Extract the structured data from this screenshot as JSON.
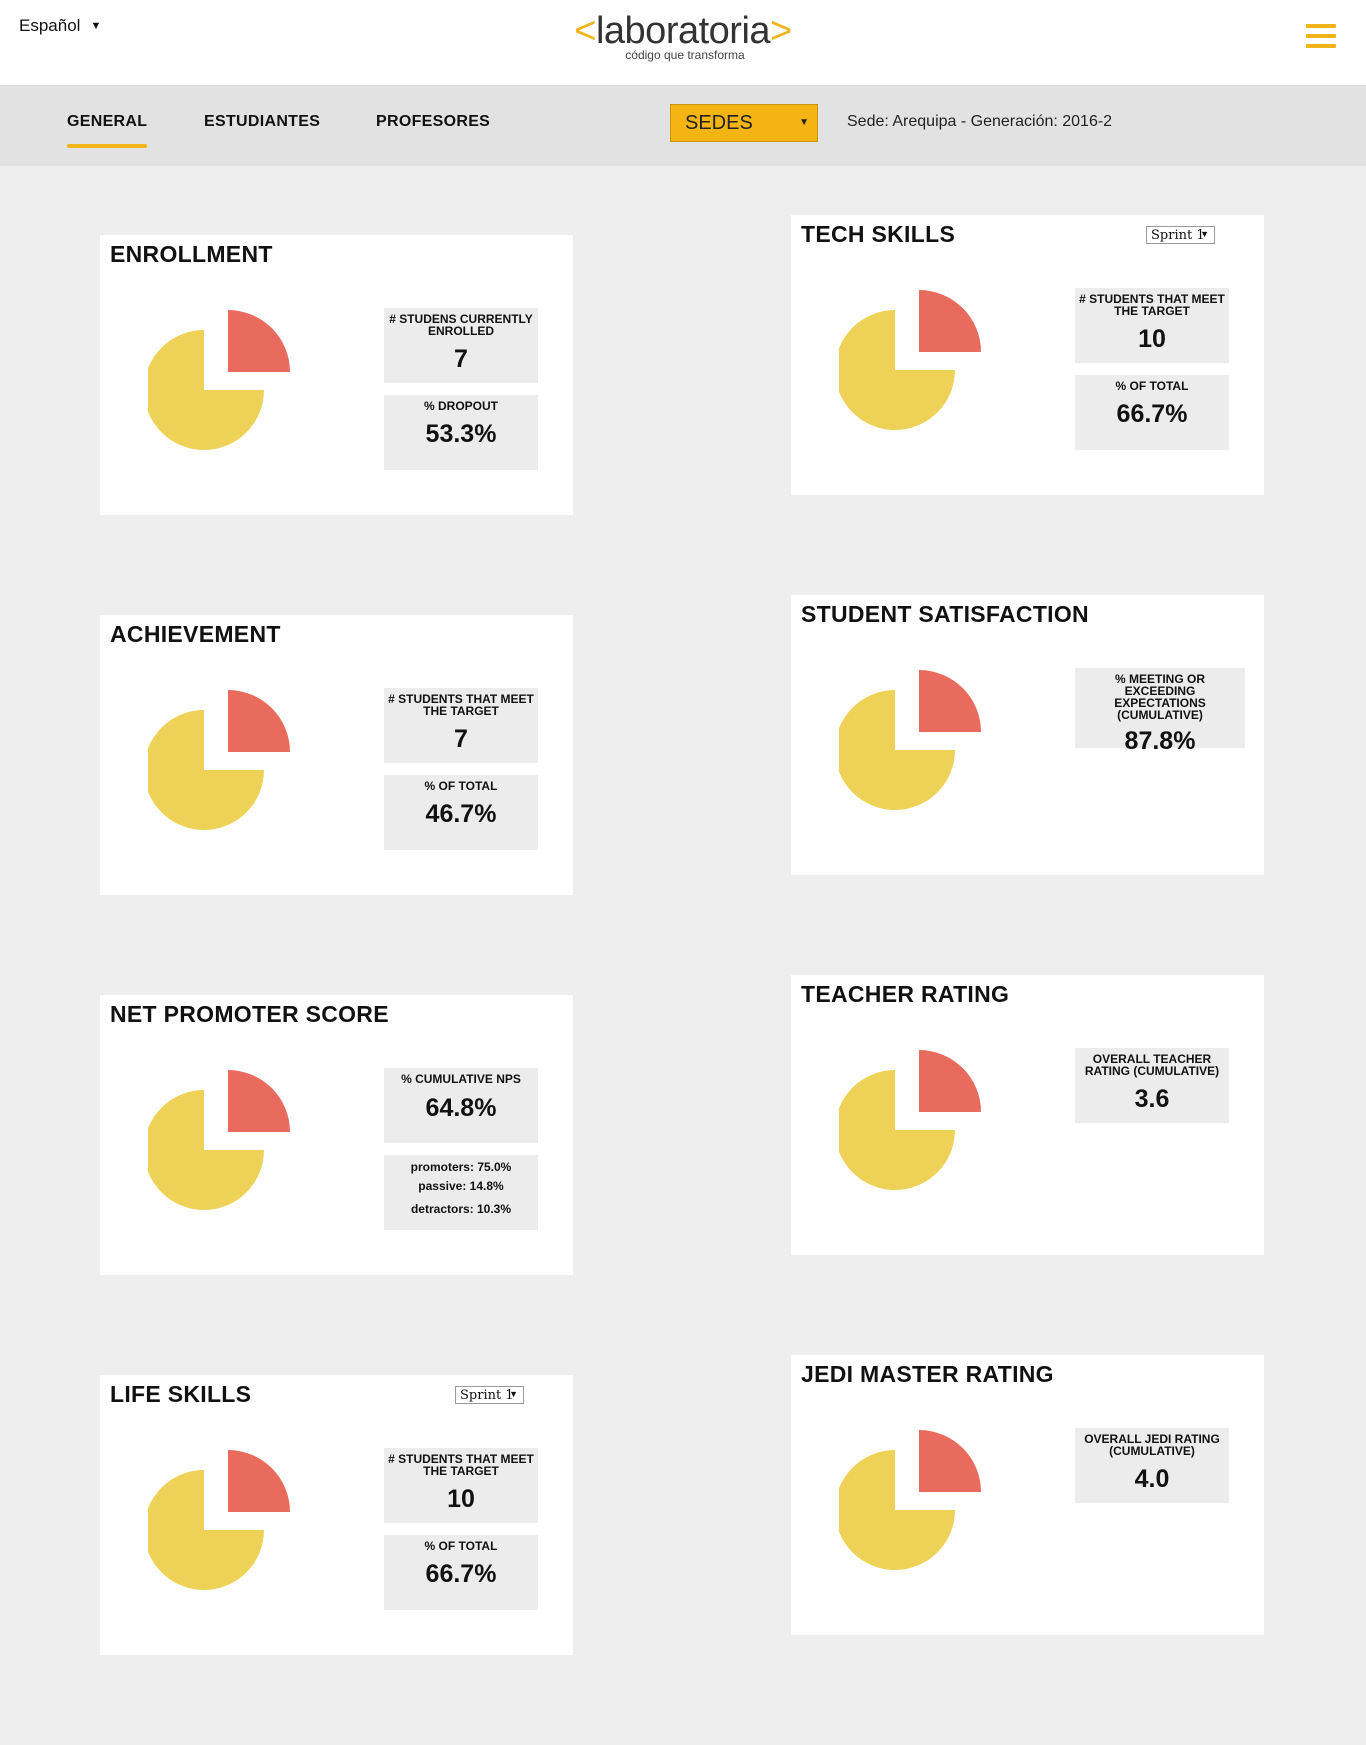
{
  "header": {
    "language": "Español",
    "logo_open": "<",
    "logo_text": "laboratoria",
    "logo_close": ">",
    "logo_tagline": "código que transforma",
    "menu_icon": "hamburger-icon"
  },
  "nav": {
    "tabs": [
      {
        "label": "GENERAL"
      },
      {
        "label": "ESTUDIANTES"
      },
      {
        "label": "PROFESORES"
      }
    ],
    "sedes_label": "SEDES",
    "sede_info": "Sede: Arequipa - Generación: 2016-2"
  },
  "colors": {
    "accent": "#f0b418",
    "pie_major": "#eed157",
    "pie_minor": "#e96b5d"
  },
  "cards": {
    "enrollment": {
      "title": "ENROLLMENT",
      "stat1_label": "# STUDENS CURRENTLY ENROLLED",
      "stat1_value": "7",
      "stat2_label": "% DROPOUT",
      "stat2_value": "53.3%"
    },
    "tech": {
      "title": "TECH SKILLS",
      "sprint": "Sprint 1",
      "stat1_label": "# STUDENTS THAT MEET THE TARGET",
      "stat1_value": "10",
      "stat2_label": "% OF TOTAL",
      "stat2_value": "66.7%"
    },
    "achievement": {
      "title": "ACHIEVEMENT",
      "stat1_label": "# STUDENTS THAT MEET THE TARGET",
      "stat1_value": "7",
      "stat2_label": "% OF TOTAL",
      "stat2_value": "46.7%"
    },
    "satisfaction": {
      "title": "STUDENT SATISFACTION",
      "stat1_label": "% MEETING OR EXCEEDING EXPECTATIONS (CUMULATIVE)",
      "stat1_value": "87.8%"
    },
    "nps": {
      "title": "NET PROMOTER SCORE",
      "stat1_label": "% CUMULATIVE NPS",
      "stat1_value": "64.8%",
      "promoters": "promoters: 75.0%",
      "passive": "passive: 14.8%",
      "detractors": "detractors: 10.3%"
    },
    "teacher": {
      "title": "TEACHER RATING",
      "stat1_label": "OVERALL TEACHER RATING (CUMULATIVE)",
      "stat1_value": "3.6"
    },
    "life": {
      "title": "LIFE SKILLS",
      "sprint": "Sprint 1",
      "stat1_label": "# STUDENTS THAT MEET THE TARGET",
      "stat1_value": "10",
      "stat2_label": "% OF TOTAL",
      "stat2_value": "66.7%"
    },
    "jedi": {
      "title": "JEDI MASTER RATING",
      "stat1_label": "OVERALL JEDI RATING (CUMULATIVE)",
      "stat1_value": "4.0"
    }
  }
}
